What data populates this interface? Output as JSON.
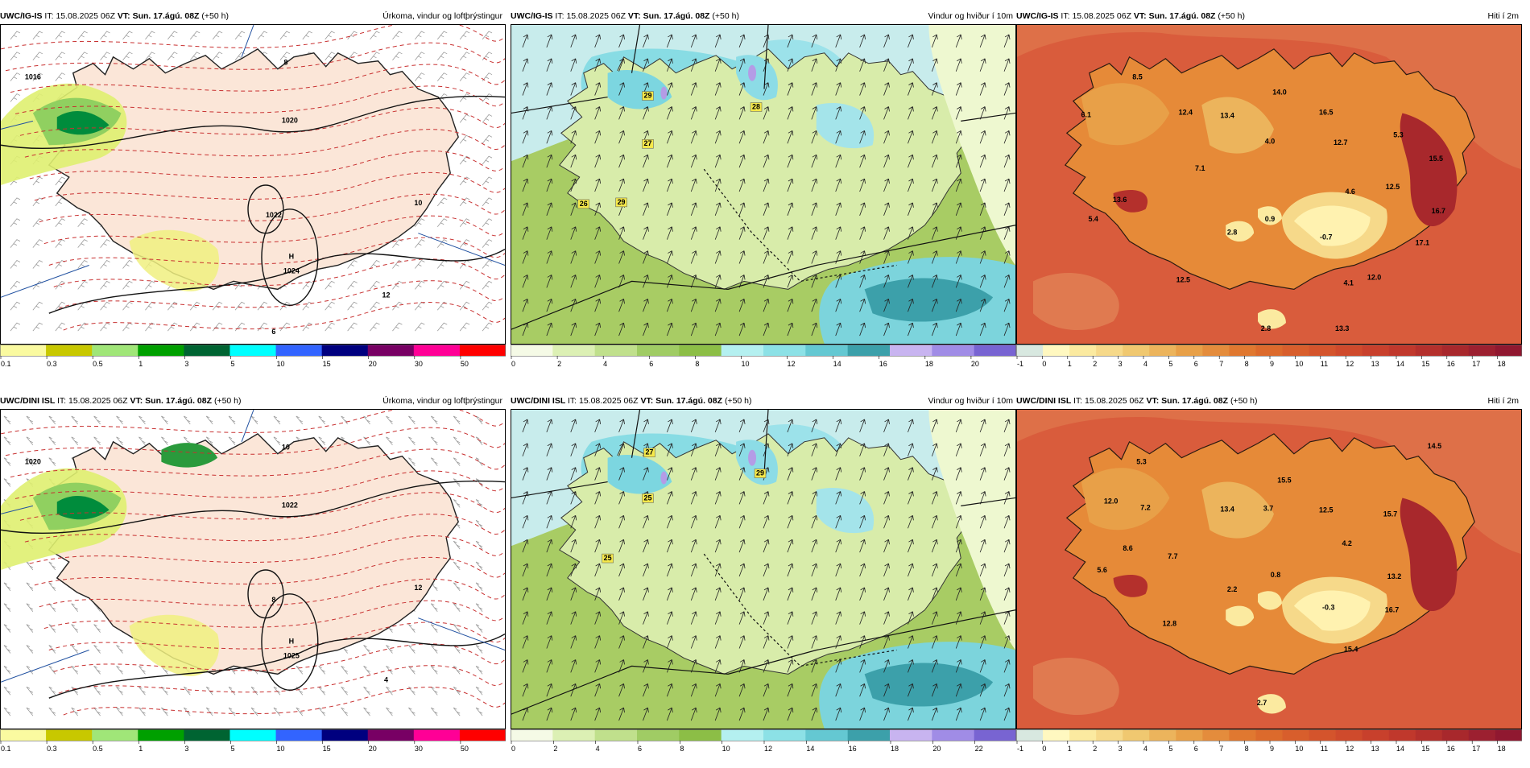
{
  "rows": [
    {
      "model": "UWC/IG-IS",
      "it_label": "IT:",
      "it_value": "15.08.2025 06Z",
      "vt_label": "VT:",
      "vt_value": "Sun. 17.ágú. 08Z",
      "lead": "(+50 h)",
      "panels": [
        {
          "kind": "precip",
          "title": "Úrkoma, vindur og loftþrýstingur",
          "colorbar": {
            "ticks": [
              "0.1",
              "0.3",
              "0.5",
              "1",
              "3",
              "5",
              "10",
              "15",
              "20",
              "30",
              "50"
            ],
            "colors": [
              "#fafaa0",
              "#c8c800",
              "#a0e678",
              "#00a000",
              "#006432",
              "#00ffff",
              "#3264ff",
              "#00007f",
              "#780064",
              "#ff0096",
              "#ff0000"
            ]
          },
          "labels": [
            {
              "text": "H",
              "kind": "high"
            },
            {
              "text": "1024",
              "kind": "pressure"
            },
            {
              "text": "1016",
              "kind": "isobar"
            },
            {
              "text": "1020",
              "kind": "isobar"
            },
            {
              "text": "1022",
              "kind": "isobar"
            },
            {
              "text": "8",
              "kind": "temp"
            },
            {
              "text": "10",
              "kind": "temp"
            },
            {
              "text": "12",
              "kind": "temp"
            },
            {
              "text": "6",
              "kind": "temp"
            }
          ]
        },
        {
          "kind": "wind",
          "title": "Vindur og hviður í 10m",
          "colorbar": {
            "ticks": [
              "0",
              "2",
              "4",
              "6",
              "8",
              "10",
              "12",
              "14",
              "16",
              "18",
              "20"
            ],
            "colors": [
              "#f5fae6",
              "#dcf0b4",
              "#c0e08c",
              "#a0cc64",
              "#8cbe46",
              "#b4f0f0",
              "#8ce1e6",
              "#64c8d2",
              "#3ca0aa",
              "#c8b4f0",
              "#a08ce6",
              "#7864d2"
            ]
          },
          "labels": [
            {
              "text": "29"
            },
            {
              "text": "28"
            },
            {
              "text": "27"
            },
            {
              "text": "26"
            },
            {
              "text": "29"
            }
          ]
        },
        {
          "kind": "temp",
          "title": "Hiti í 2m",
          "colorbar": {
            "ticks": [
              "-1",
              "0",
              "1",
              "2",
              "3",
              "4",
              "5",
              "6",
              "7",
              "8",
              "9",
              "10",
              "11",
              "12",
              "13",
              "14",
              "15",
              "16",
              "17",
              "18"
            ],
            "colors": [
              "#d8e8e0",
              "#fff8c0",
              "#fbeaa0",
              "#f6d98a",
              "#f0c870",
              "#ecb45c",
              "#e8a048",
              "#e48c3c",
              "#e07830",
              "#dc6a2c",
              "#d85e2c",
              "#d4542c",
              "#cf4a2c",
              "#c8402c",
              "#c0382c",
              "#b4302c",
              "#a8282c",
              "#9c2030",
              "#901830"
            ]
          },
          "labels": [
            {
              "text": "8.5"
            },
            {
              "text": "6.1"
            },
            {
              "text": "12.4"
            },
            {
              "text": "13.4"
            },
            {
              "text": "14.0"
            },
            {
              "text": "16.5"
            },
            {
              "text": "4.0"
            },
            {
              "text": "12.7"
            },
            {
              "text": "5.3"
            },
            {
              "text": "15.5"
            },
            {
              "text": "7.1"
            },
            {
              "text": "13.6"
            },
            {
              "text": "4.6"
            },
            {
              "text": "12.5"
            },
            {
              "text": "5.4"
            },
            {
              "text": "2.8"
            },
            {
              "text": "0.9"
            },
            {
              "text": "-0.7"
            },
            {
              "text": "16.7"
            },
            {
              "text": "17.1"
            },
            {
              "text": "12.0"
            },
            {
              "text": "4.1"
            },
            {
              "text": "12.5"
            },
            {
              "text": "2.8"
            },
            {
              "text": "13.3"
            }
          ]
        }
      ]
    },
    {
      "model": "UWC/DINI ISL",
      "it_label": "IT:",
      "it_value": "15.08.2025 06Z",
      "vt_label": "VT:",
      "vt_value": "Sun. 17.ágú. 08Z",
      "lead": "(+50 h)",
      "panels": [
        {
          "kind": "precip",
          "title": "Úrkoma, vindur og loftþrýstingur",
          "colorbar": {
            "ticks": [
              "0.1",
              "0.3",
              "0.5",
              "1",
              "3",
              "5",
              "10",
              "15",
              "20",
              "30",
              "50"
            ],
            "colors": [
              "#fafaa0",
              "#c8c800",
              "#a0e678",
              "#00a000",
              "#006432",
              "#00ffff",
              "#3264ff",
              "#00007f",
              "#780064",
              "#ff0096",
              "#ff0000"
            ]
          },
          "labels": [
            {
              "text": "H",
              "kind": "high"
            },
            {
              "text": "1025",
              "kind": "pressure"
            },
            {
              "text": "1020",
              "kind": "isobar"
            },
            {
              "text": "1022",
              "kind": "isobar"
            },
            {
              "text": "8",
              "kind": "temp"
            },
            {
              "text": "10",
              "kind": "temp"
            },
            {
              "text": "12",
              "kind": "temp"
            },
            {
              "text": "4",
              "kind": "temp"
            }
          ]
        },
        {
          "kind": "wind",
          "title": "Vindur og hviður í 10m",
          "colorbar": {
            "ticks": [
              "0",
              "2",
              "4",
              "6",
              "8",
              "10",
              "12",
              "14",
              "16",
              "18",
              "20",
              "22"
            ],
            "colors": [
              "#f5fae6",
              "#dcf0b4",
              "#c0e08c",
              "#a0cc64",
              "#8cbe46",
              "#b4f0f0",
              "#8ce1e6",
              "#64c8d2",
              "#3ca0aa",
              "#c8b4f0",
              "#a08ce6",
              "#7864d2"
            ]
          },
          "labels": [
            {
              "text": "27"
            },
            {
              "text": "29"
            },
            {
              "text": "25"
            },
            {
              "text": "25"
            }
          ]
        },
        {
          "kind": "temp",
          "title": "Hiti í 2m",
          "colorbar": {
            "ticks": [
              "-1",
              "0",
              "1",
              "2",
              "3",
              "4",
              "5",
              "6",
              "7",
              "8",
              "9",
              "10",
              "11",
              "12",
              "13",
              "14",
              "15",
              "16",
              "17",
              "18"
            ],
            "colors": [
              "#d8e8e0",
              "#fff8c0",
              "#fbeaa0",
              "#f6d98a",
              "#f0c870",
              "#ecb45c",
              "#e8a048",
              "#e48c3c",
              "#e07830",
              "#dc6a2c",
              "#d85e2c",
              "#d4542c",
              "#cf4a2c",
              "#c8402c",
              "#c0382c",
              "#b4302c",
              "#a8282c",
              "#9c2030",
              "#901830"
            ]
          },
          "labels": [
            {
              "text": "5.3"
            },
            {
              "text": "14.5"
            },
            {
              "text": "12.0"
            },
            {
              "text": "7.2"
            },
            {
              "text": "13.4"
            },
            {
              "text": "15.5"
            },
            {
              "text": "3.7"
            },
            {
              "text": "12.5"
            },
            {
              "text": "15.7"
            },
            {
              "text": "7.7"
            },
            {
              "text": "8.6"
            },
            {
              "text": "4.2"
            },
            {
              "text": "5.6"
            },
            {
              "text": "2.2"
            },
            {
              "text": "0.8"
            },
            {
              "text": "13.2"
            },
            {
              "text": "-0.3"
            },
            {
              "text": "16.7"
            },
            {
              "text": "12.8"
            },
            {
              "text": "15.4"
            },
            {
              "text": "2.7"
            }
          ]
        }
      ]
    }
  ]
}
